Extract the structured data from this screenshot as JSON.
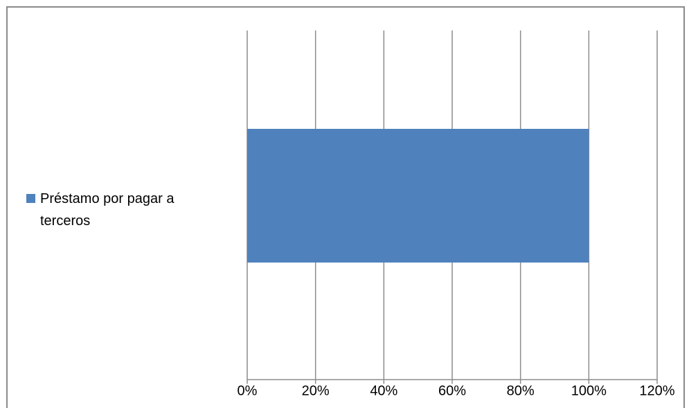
{
  "chart_data": {
    "type": "bar",
    "orientation": "horizontal",
    "categories": [
      ""
    ],
    "series": [
      {
        "name": "Préstamo por pagar a terceros",
        "values": [
          1.0
        ],
        "color": "#4f81bd"
      }
    ],
    "xlim": [
      0,
      1.2
    ],
    "x_ticks": [
      0,
      0.2,
      0.4,
      0.6,
      0.8,
      1.0,
      1.2
    ],
    "x_tick_labels": [
      "0%",
      "20%",
      "40%",
      "60%",
      "80%",
      "100%",
      "120%"
    ],
    "grid": true,
    "legend_position": "left"
  }
}
